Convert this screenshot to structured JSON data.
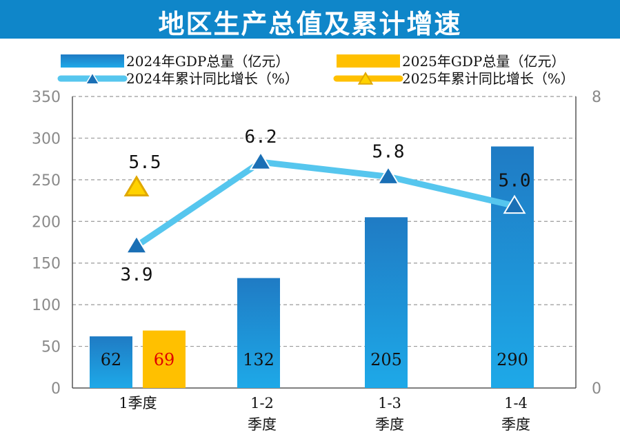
{
  "title": "地区生产总值及累计增速",
  "colors": {
    "banner": "#0f86c9",
    "bar2024_top": "#1f7bc4",
    "bar2024_bottom": "#1ea9e8",
    "bar2025": "#ffc000",
    "line2024": "#56c6ee",
    "marker2024": "#1a6fb5",
    "marker2025": "#ffd200"
  },
  "chart_data": {
    "type": "bar",
    "categories": [
      [
        "1季度"
      ],
      [
        "1-2",
        "季度"
      ],
      [
        "1-3",
        "季度"
      ],
      [
        "1-4",
        "季度"
      ]
    ],
    "series": [
      {
        "name": "2024年GDP总量（亿元）",
        "kind": "bar",
        "axis": "left",
        "values": [
          62,
          132,
          205,
          290
        ],
        "labels": [
          "62",
          "132",
          "205",
          "290"
        ]
      },
      {
        "name": "2025年GDP总量（亿元）",
        "kind": "bar",
        "axis": "left",
        "values": [
          69,
          null,
          null,
          null
        ],
        "labels": [
          "69",
          null,
          null,
          null
        ]
      },
      {
        "name": "2024年累计同比增长（%）",
        "kind": "line",
        "axis": "right",
        "values": [
          3.9,
          6.2,
          5.8,
          5.0
        ],
        "labels": [
          "3.9",
          "6.2",
          "5.8",
          "5.0"
        ]
      },
      {
        "name": "2025年累计同比增长（%）",
        "kind": "line",
        "axis": "right",
        "values": [
          5.5,
          null,
          null,
          null
        ],
        "labels": [
          "5.5",
          null,
          null,
          null
        ]
      }
    ],
    "y_left": {
      "min": 0,
      "max": 350,
      "ticks": [
        "0",
        "50",
        "100",
        "150",
        "200",
        "250",
        "300",
        "350"
      ]
    },
    "y_right": {
      "min": 0,
      "max": 8,
      "ticks": [
        "0",
        "8"
      ]
    },
    "grid": true,
    "legend_position": "top"
  }
}
